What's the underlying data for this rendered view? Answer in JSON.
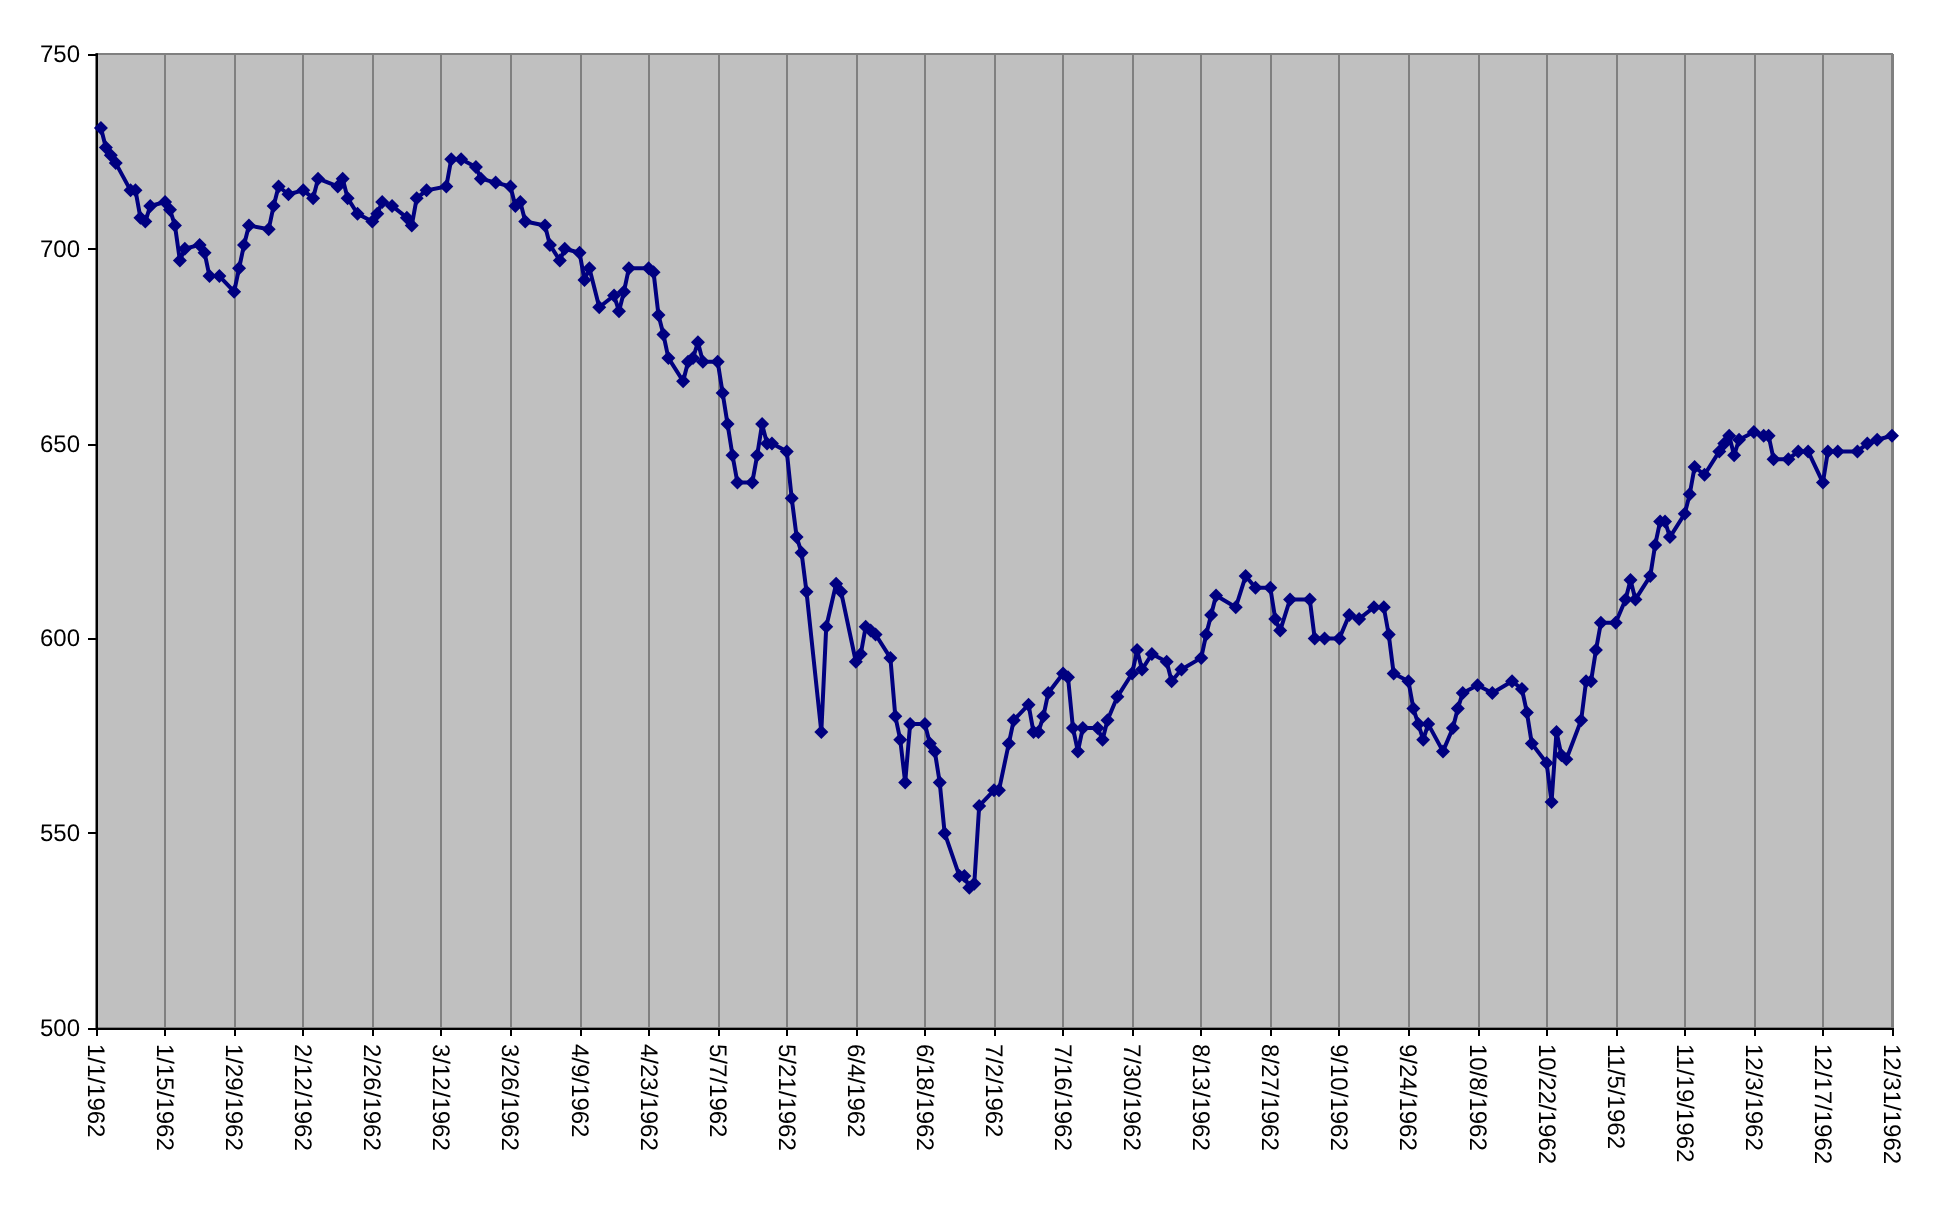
{
  "chart_data": {
    "type": "line",
    "color": "#000080",
    "marker": "diamond",
    "grid": "x",
    "x": [
      "1962-01-02",
      "1962-01-03",
      "1962-01-04",
      "1962-01-05",
      "1962-01-08",
      "1962-01-09",
      "1962-01-10",
      "1962-01-11",
      "1962-01-12",
      "1962-01-15",
      "1962-01-16",
      "1962-01-17",
      "1962-01-18",
      "1962-01-19",
      "1962-01-22",
      "1962-01-23",
      "1962-01-24",
      "1962-01-26",
      "1962-01-29",
      "1962-01-30",
      "1962-01-31",
      "1962-02-01",
      "1962-02-05",
      "1962-02-06",
      "1962-02-07",
      "1962-02-09",
      "1962-02-12",
      "1962-02-14",
      "1962-02-15",
      "1962-02-19",
      "1962-02-20",
      "1962-02-21",
      "1962-02-23",
      "1962-02-26",
      "1962-02-27",
      "1962-02-28",
      "1962-03-02",
      "1962-03-05",
      "1962-03-06",
      "1962-03-07",
      "1962-03-09",
      "1962-03-13",
      "1962-03-14",
      "1962-03-16",
      "1962-03-19",
      "1962-03-20",
      "1962-03-23",
      "1962-03-26",
      "1962-03-27",
      "1962-03-28",
      "1962-03-29",
      "1962-04-02",
      "1962-04-03",
      "1962-04-05",
      "1962-04-06",
      "1962-04-09",
      "1962-04-10",
      "1962-04-11",
      "1962-04-13",
      "1962-04-16",
      "1962-04-17",
      "1962-04-18",
      "1962-04-19",
      "1962-04-23",
      "1962-04-24",
      "1962-04-25",
      "1962-04-26",
      "1962-04-27",
      "1962-04-30",
      "1962-05-01",
      "1962-05-02",
      "1962-05-03",
      "1962-05-04",
      "1962-05-07",
      "1962-05-08",
      "1962-05-09",
      "1962-05-10",
      "1962-05-11",
      "1962-05-14",
      "1962-05-15",
      "1962-05-16",
      "1962-05-17",
      "1962-05-18",
      "1962-05-21",
      "1962-05-22",
      "1962-05-23",
      "1962-05-24",
      "1962-05-25",
      "1962-05-28",
      "1962-05-29",
      "1962-05-31",
      "1962-06-01",
      "1962-06-04",
      "1962-06-05",
      "1962-06-06",
      "1962-06-07",
      "1962-06-08",
      "1962-06-11",
      "1962-06-12",
      "1962-06-13",
      "1962-06-14",
      "1962-06-15",
      "1962-06-18",
      "1962-06-19",
      "1962-06-20",
      "1962-06-21",
      "1962-06-22",
      "1962-06-25",
      "1962-06-26",
      "1962-06-27",
      "1962-06-28",
      "1962-06-29",
      "1962-07-02",
      "1962-07-03",
      "1962-07-05",
      "1962-07-06",
      "1962-07-09",
      "1962-07-10",
      "1962-07-11",
      "1962-07-12",
      "1962-07-13",
      "1962-07-16",
      "1962-07-17",
      "1962-07-18",
      "1962-07-19",
      "1962-07-20",
      "1962-07-23",
      "1962-07-24",
      "1962-07-25",
      "1962-07-27",
      "1962-07-30",
      "1962-07-31",
      "1962-08-01",
      "1962-08-03",
      "1962-08-06",
      "1962-08-07",
      "1962-08-09",
      "1962-08-13",
      "1962-08-14",
      "1962-08-15",
      "1962-08-16",
      "1962-08-20",
      "1962-08-22",
      "1962-08-24",
      "1962-08-27",
      "1962-08-28",
      "1962-08-29",
      "1962-08-31",
      "1962-09-04",
      "1962-09-05",
      "1962-09-07",
      "1962-09-10",
      "1962-09-12",
      "1962-09-14",
      "1962-09-17",
      "1962-09-19",
      "1962-09-20",
      "1962-09-21",
      "1962-09-24",
      "1962-09-25",
      "1962-09-26",
      "1962-09-27",
      "1962-09-28",
      "1962-10-01",
      "1962-10-03",
      "1962-10-04",
      "1962-10-05",
      "1962-10-08",
      "1962-10-11",
      "1962-10-15",
      "1962-10-17",
      "1962-10-18",
      "1962-10-19",
      "1962-10-22",
      "1962-10-23",
      "1962-10-24",
      "1962-10-25",
      "1962-10-26",
      "1962-10-29",
      "1962-10-30",
      "1962-10-31",
      "1962-11-01",
      "1962-11-02",
      "1962-11-05",
      "1962-11-07",
      "1962-11-08",
      "1962-11-09",
      "1962-11-12",
      "1962-11-13",
      "1962-11-14",
      "1962-11-15",
      "1962-11-16",
      "1962-11-19",
      "1962-11-20",
      "1962-11-21",
      "1962-11-23",
      "1962-11-26",
      "1962-11-27",
      "1962-11-28",
      "1962-11-29",
      "1962-11-30",
      "1962-12-03",
      "1962-12-05",
      "1962-12-06",
      "1962-12-07",
      "1962-12-10",
      "1962-12-12",
      "1962-12-14",
      "1962-12-17",
      "1962-12-18",
      "1962-12-20",
      "1962-12-24",
      "1962-12-26",
      "1962-12-28",
      "1962-12-31"
    ],
    "values": [
      731,
      726,
      724,
      722,
      715,
      715,
      708,
      707,
      711,
      712,
      710,
      706,
      697,
      700,
      701,
      699,
      693,
      693,
      689,
      695,
      701,
      706,
      705,
      711,
      716,
      714,
      715,
      713,
      718,
      716,
      718,
      713,
      709,
      707,
      709,
      712,
      711,
      708,
      706,
      713,
      715,
      716,
      723,
      723,
      721,
      718,
      717,
      716,
      711,
      712,
      707,
      706,
      701,
      697,
      700,
      699,
      692,
      695,
      685,
      688,
      684,
      689,
      695,
      695,
      694,
      683,
      678,
      672,
      666,
      671,
      672,
      676,
      671,
      671,
      663,
      655,
      647,
      640,
      640,
      647,
      655,
      650,
      650,
      648,
      636,
      626,
      622,
      612,
      576,
      603,
      614,
      612,
      594,
      596,
      603,
      602,
      601,
      595,
      580,
      574,
      563,
      578,
      578,
      573,
      571,
      563,
      550,
      539,
      539,
      536,
      537,
      557,
      561,
      561,
      573,
      579,
      583,
      576,
      576,
      580,
      586,
      591,
      590,
      577,
      571,
      577,
      577,
      574,
      579,
      585,
      591,
      597,
      592,
      596,
      594,
      589,
      592,
      595,
      601,
      606,
      611,
      608,
      616,
      613,
      613,
      605,
      602,
      610,
      610,
      600,
      600,
      600,
      606,
      605,
      608,
      608,
      601,
      591,
      589,
      582,
      578,
      574,
      578,
      571,
      577,
      582,
      586,
      588,
      586,
      589,
      587,
      581,
      573,
      568,
      558,
      576,
      570,
      569,
      579,
      589,
      589,
      597,
      604,
      604,
      610,
      615,
      610,
      616,
      624,
      630,
      630,
      626,
      632,
      637,
      644,
      642,
      648,
      650,
      652,
      647,
      651,
      653,
      652,
      652,
      646,
      646,
      648,
      648,
      640,
      648,
      648,
      648,
      650,
      651,
      652
    ],
    "xlim": [
      "1962-01-01",
      "1962-12-31"
    ],
    "xticks": [
      {
        "value": "1962-01-01",
        "label": "1/1/1962"
      },
      {
        "value": "1962-01-15",
        "label": "1/15/1962"
      },
      {
        "value": "1962-01-29",
        "label": "1/29/1962"
      },
      {
        "value": "1962-02-12",
        "label": "2/12/1962"
      },
      {
        "value": "1962-02-26",
        "label": "2/26/1962"
      },
      {
        "value": "1962-03-12",
        "label": "3/12/1962"
      },
      {
        "value": "1962-03-26",
        "label": "3/26/1962"
      },
      {
        "value": "1962-04-09",
        "label": "4/9/1962"
      },
      {
        "value": "1962-04-23",
        "label": "4/23/1962"
      },
      {
        "value": "1962-05-07",
        "label": "5/7/1962"
      },
      {
        "value": "1962-05-21",
        "label": "5/21/1962"
      },
      {
        "value": "1962-06-04",
        "label": "6/4/1962"
      },
      {
        "value": "1962-06-18",
        "label": "6/18/1962"
      },
      {
        "value": "1962-07-02",
        "label": "7/2/1962"
      },
      {
        "value": "1962-07-16",
        "label": "7/16/1962"
      },
      {
        "value": "1962-07-30",
        "label": "7/30/1962"
      },
      {
        "value": "1962-08-13",
        "label": "8/13/1962"
      },
      {
        "value": "1962-08-27",
        "label": "8/27/1962"
      },
      {
        "value": "1962-09-10",
        "label": "9/10/1962"
      },
      {
        "value": "1962-09-24",
        "label": "9/24/1962"
      },
      {
        "value": "1962-10-08",
        "label": "10/8/1962"
      },
      {
        "value": "1962-10-22",
        "label": "10/22/1962"
      },
      {
        "value": "1962-11-05",
        "label": "11/5/1962"
      },
      {
        "value": "1962-11-19",
        "label": "11/19/1962"
      },
      {
        "value": "1962-12-03",
        "label": "12/3/1962"
      },
      {
        "value": "1962-12-17",
        "label": "12/17/1962"
      },
      {
        "value": "1962-12-31",
        "label": "12/31/1962"
      }
    ],
    "ylim": [
      500,
      750
    ],
    "yticks": [
      500,
      550,
      600,
      650,
      700,
      750
    ]
  }
}
